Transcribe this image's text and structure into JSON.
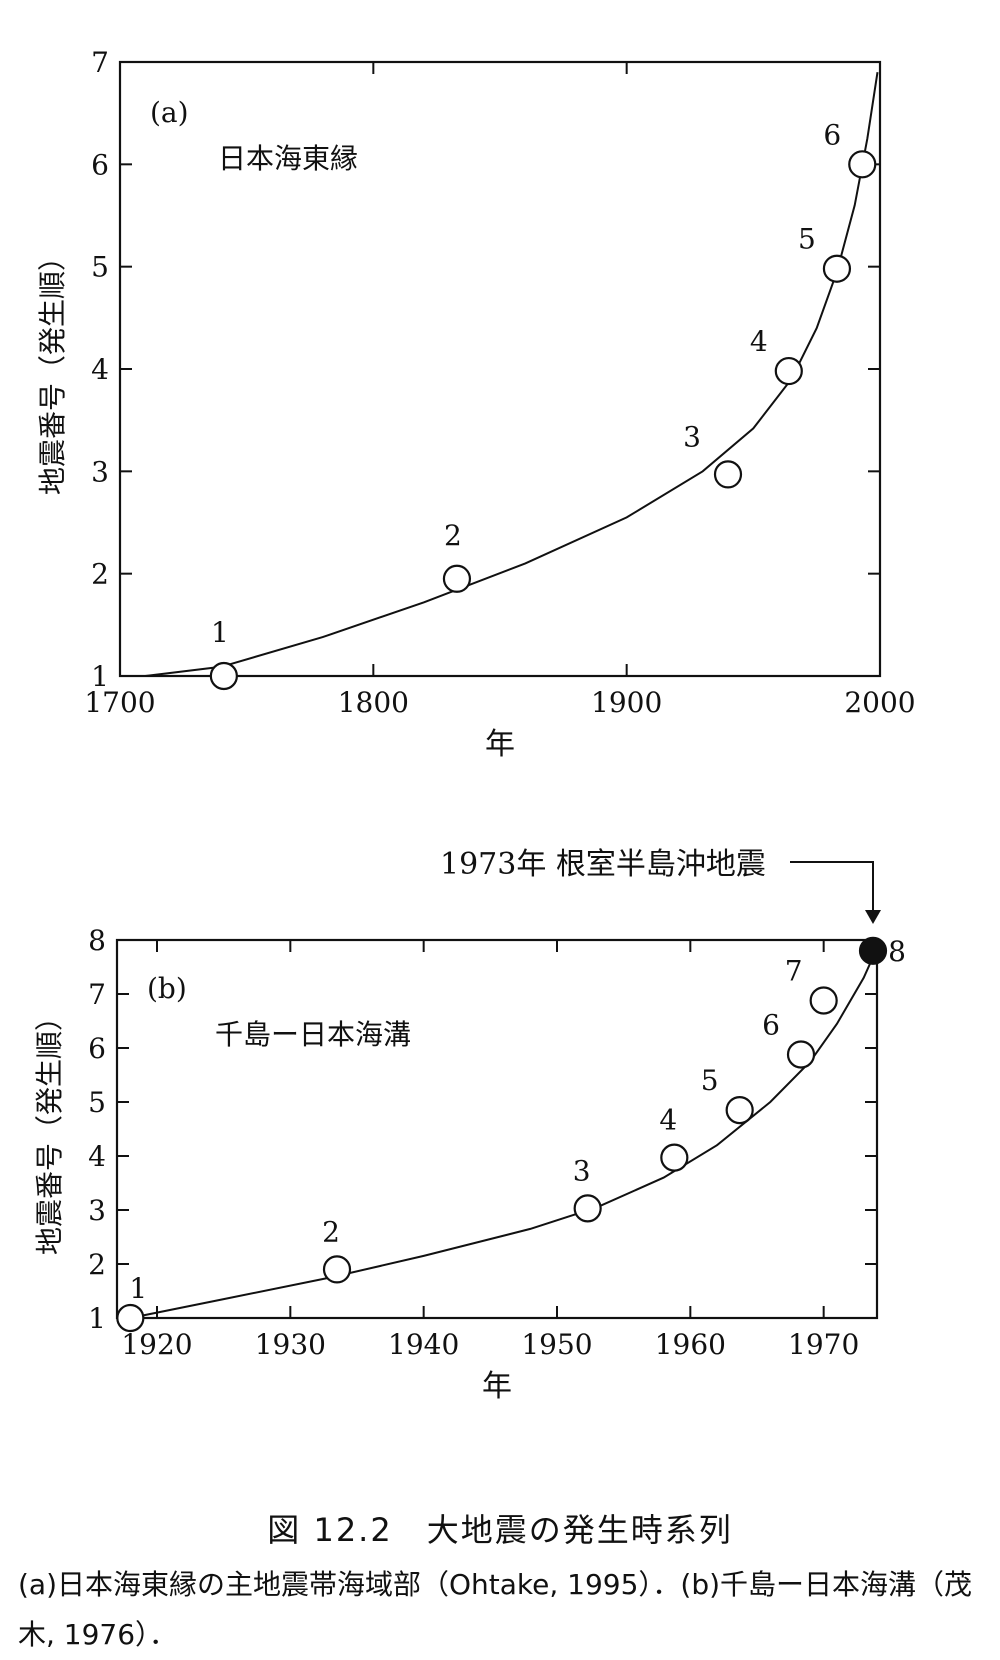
{
  "chart_data": [
    {
      "type": "scatter",
      "panel_label": "(a)",
      "region_label": "日本海東縁",
      "xlabel": "年",
      "ylabel": "地震番号（発生順）",
      "xlim": [
        1700,
        2000
      ],
      "ylim": [
        1,
        7
      ],
      "xticks": [
        1700,
        1800,
        1900,
        2000
      ],
      "yticks": [
        1,
        2,
        3,
        4,
        5,
        6,
        7
      ],
      "points": [
        {
          "label": "1",
          "x": 1741,
          "y": 1.0
        },
        {
          "label": "2",
          "x": 1833,
          "y": 1.95
        },
        {
          "label": "3",
          "x": 1940,
          "y": 2.97
        },
        {
          "label": "4",
          "x": 1964,
          "y": 3.98
        },
        {
          "label": "5",
          "x": 1983,
          "y": 4.98
        },
        {
          "label": "6",
          "x": 1993,
          "y": 6.0
        }
      ],
      "curve": [
        [
          1710,
          1.0
        ],
        [
          1740,
          1.09
        ],
        [
          1780,
          1.38
        ],
        [
          1820,
          1.72
        ],
        [
          1860,
          2.1
        ],
        [
          1900,
          2.55
        ],
        [
          1930,
          3.0
        ],
        [
          1950,
          3.42
        ],
        [
          1965,
          3.9
        ],
        [
          1975,
          4.4
        ],
        [
          1983,
          4.95
        ],
        [
          1990,
          5.6
        ],
        [
          1995,
          6.25
        ],
        [
          1999,
          6.9
        ]
      ],
      "grid": false
    },
    {
      "type": "scatter",
      "panel_label": "(b)",
      "region_label": "千島ー日本海溝",
      "xlabel": "年",
      "ylabel": "地震番号（発生順）",
      "xlim": [
        1917,
        1974
      ],
      "ylim": [
        1,
        8
      ],
      "xticks": [
        1920,
        1930,
        1940,
        1950,
        1960,
        1970
      ],
      "yticks": [
        1,
        2,
        3,
        4,
        5,
        6,
        7,
        8
      ],
      "points": [
        {
          "label": "1",
          "x": 1918,
          "y": 1.0,
          "filled": false
        },
        {
          "label": "2",
          "x": 1933.5,
          "y": 1.9,
          "filled": false
        },
        {
          "label": "3",
          "x": 1952.3,
          "y": 3.03,
          "filled": false
        },
        {
          "label": "4",
          "x": 1958.8,
          "y": 3.97,
          "filled": false
        },
        {
          "label": "5",
          "x": 1963.7,
          "y": 4.85,
          "filled": false
        },
        {
          "label": "6",
          "x": 1968.3,
          "y": 5.88,
          "filled": false
        },
        {
          "label": "7",
          "x": 1970,
          "y": 6.88,
          "filled": false
        },
        {
          "label": "8",
          "x": 1973.7,
          "y": 7.8,
          "filled": true
        }
      ],
      "curve": [
        [
          1918,
          1.0
        ],
        [
          1925,
          1.35
        ],
        [
          1933,
          1.75
        ],
        [
          1940,
          2.15
        ],
        [
          1948,
          2.65
        ],
        [
          1953,
          3.05
        ],
        [
          1958,
          3.6
        ],
        [
          1962,
          4.2
        ],
        [
          1966,
          5.0
        ],
        [
          1969,
          5.75
        ],
        [
          1971,
          6.45
        ],
        [
          1973,
          7.3
        ],
        [
          1974,
          7.85
        ]
      ],
      "annotation": "1973年 根室半島沖地震",
      "grid": false
    }
  ],
  "caption": {
    "title": "図 12.2　大地震の発生時系列",
    "body": "(a)日本海東縁の主地震帯海域部（Ohtake, 1995）．(b)千島ー日本海溝（茂木, 1976）．"
  }
}
